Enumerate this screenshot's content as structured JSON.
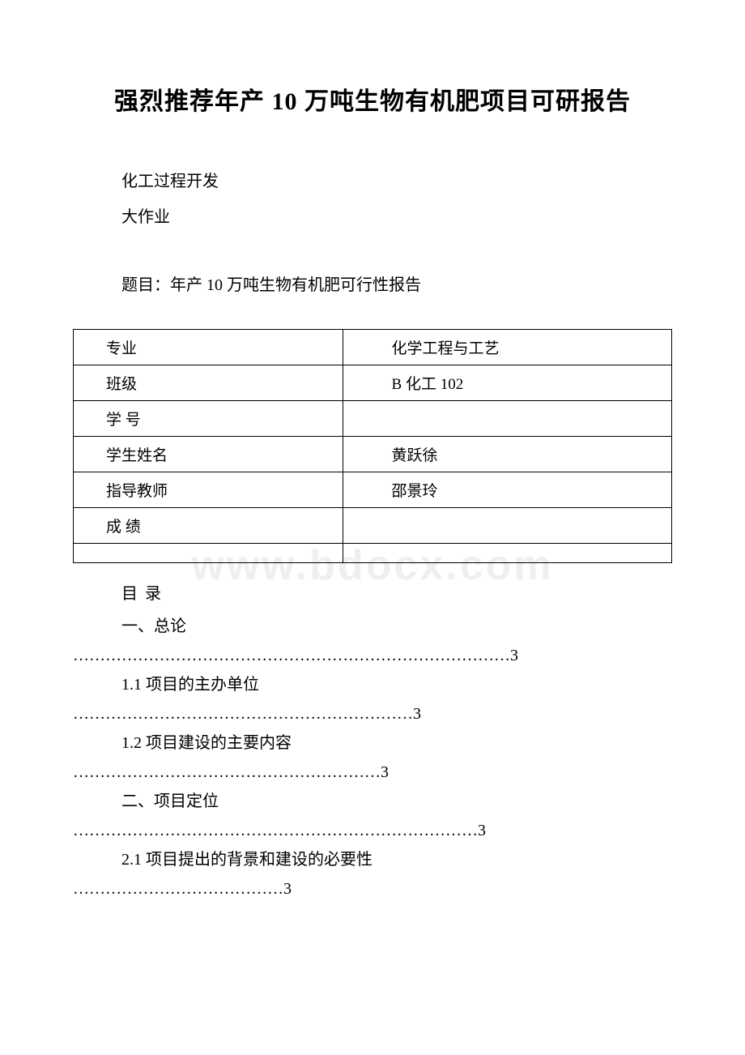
{
  "title": "强烈推荐年产 10 万吨生物有机肥项目可研报告",
  "intro": {
    "line1": "化工过程开发",
    "line2": "  大作业",
    "topic": "题目：年产 10 万吨生物有机肥可行性报告"
  },
  "table": {
    "rows": [
      {
        "label": "专业",
        "value": "化学工程与工艺"
      },
      {
        "label": "班级",
        "value": "B 化工 102"
      },
      {
        "label": "学 号",
        "value": ""
      },
      {
        "label": "学生姓名",
        "value": "黄跃徐"
      },
      {
        "label": "指导教师",
        "value": "邵景玲"
      },
      {
        "label": "成 绩",
        "value": ""
      }
    ]
  },
  "toc": {
    "heading": "目 录",
    "items": [
      {
        "text": "一、总论",
        "dots": "………………………………………………………………………3"
      },
      {
        "text": "1.1 项目的主办单位",
        "dots": "………………………………………………………3"
      },
      {
        "text": "1.2 项目建设的主要内容",
        "dots": "…………………………………………………3"
      },
      {
        "text": "二、项目定位",
        "dots": "…………………………………………………………………3"
      },
      {
        "text": "2.1 项目提出的背景和建设的必要性",
        "dots": "…………………………………3"
      }
    ]
  },
  "watermark": "www.bdocx.com",
  "colors": {
    "background": "#ffffff",
    "text": "#000000",
    "border": "#000000",
    "watermark": "#efefef"
  },
  "fonts": {
    "title_size": 30,
    "body_size": 20,
    "table_size": 19
  }
}
